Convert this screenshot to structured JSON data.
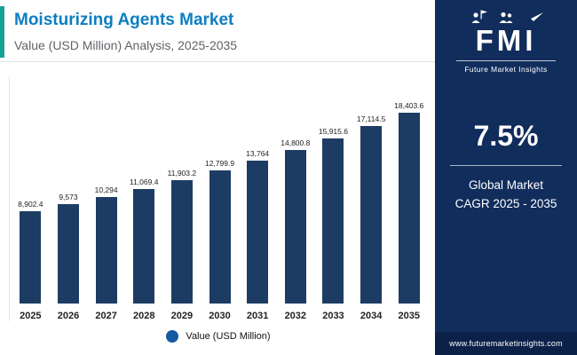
{
  "header": {
    "title": "Moisturizing Agents Market",
    "subtitle": "Value (USD Million) Analysis, 2025-2035"
  },
  "sidebar": {
    "logo_text": "FMI",
    "logo_subtext": "Future Market Insights",
    "cagr_value": "7.5%",
    "cagr_line1": "Global Market",
    "cagr_line2": "CAGR 2025 - 2035",
    "website": "www.futuremarketinsights.com"
  },
  "colors": {
    "title_blue": "#0d7ec1",
    "accent_teal": "#16a095",
    "bar_navy": "#1d3c63",
    "sidebar_navy": "#112d5c",
    "sidebar_footer_navy": "#0b2148",
    "legend_marker_blue": "#15599f"
  },
  "chart_data": {
    "type": "bar",
    "title": "Moisturizing Agents Market",
    "subtitle": "Value (USD Million) Analysis, 2025-2035",
    "categories": [
      "2025",
      "2026",
      "2027",
      "2028",
      "2029",
      "2030",
      "2031",
      "2032",
      "2033",
      "2034",
      "2035"
    ],
    "values": [
      8902.4,
      9573,
      10294,
      11069.4,
      11903.2,
      12799.9,
      13764,
      14800.8,
      15915.6,
      17114.5,
      18403.6
    ],
    "value_labels": [
      "8,902.4",
      "9,573",
      "10,294",
      "11,069.4",
      "11,903.2",
      "12,799.9",
      "13,764",
      "14,800.8",
      "15,915.6",
      "17,114.5",
      "18,403.6"
    ],
    "legend": "Value (USD Million)",
    "xlabel": "",
    "ylabel": "Value (USD Million)",
    "ylim": [
      0,
      19000
    ],
    "grid": false,
    "legend_position": "bottom",
    "bar_color": "#1d3c63",
    "legend_marker_color": "#15599f"
  }
}
